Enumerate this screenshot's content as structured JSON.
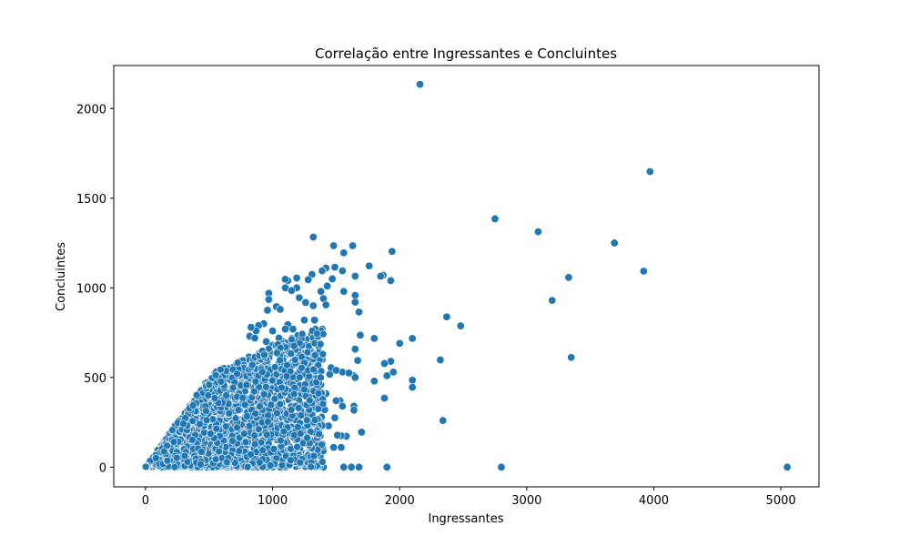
{
  "chart_data": {
    "type": "scatter",
    "title": "Correlação entre Ingressantes e Concluintes",
    "xlabel": "Ingressantes",
    "ylabel": "Concluintes",
    "xlim": [
      -250,
      5300
    ],
    "ylim": [
      -110,
      2240
    ],
    "xticks": [
      0,
      1000,
      2000,
      3000,
      4000,
      5000
    ],
    "yticks": [
      0,
      500,
      1000,
      1500,
      2000
    ],
    "grid": false,
    "marker_color": "#1f77b4",
    "marker_edge": "#ffffff",
    "dense_region": {
      "description": "thousands of points bounded by y <= x, concentrated at low values",
      "x_range": [
        0,
        1400
      ],
      "y_range": [
        0,
        800
      ]
    },
    "points": [
      [
        2160,
        2135
      ],
      [
        3970,
        1648
      ],
      [
        2750,
        1385
      ],
      [
        3090,
        1313
      ],
      [
        3690,
        1250
      ],
      [
        3920,
        1093
      ],
      [
        3330,
        1058
      ],
      [
        3200,
        930
      ],
      [
        3350,
        612
      ],
      [
        2370,
        838
      ],
      [
        2480,
        788
      ],
      [
        2320,
        598
      ],
      [
        2340,
        260
      ],
      [
        2800,
        0
      ],
      [
        5050,
        0
      ],
      [
        1900,
        0
      ],
      [
        2100,
        718
      ],
      [
        2000,
        690
      ],
      [
        1800,
        718
      ],
      [
        1690,
        736
      ],
      [
        1680,
        865
      ],
      [
        1650,
        958
      ],
      [
        1650,
        920
      ],
      [
        1650,
        1065
      ],
      [
        1630,
        1235
      ],
      [
        1760,
        1122
      ],
      [
        1870,
        1070
      ],
      [
        1850,
        1065
      ],
      [
        1930,
        1040
      ],
      [
        1940,
        1203
      ],
      [
        1560,
        1195
      ],
      [
        1550,
        1095
      ],
      [
        1480,
        1235
      ],
      [
        1320,
        1283
      ],
      [
        1420,
        1110
      ],
      [
        1490,
        1115
      ],
      [
        1470,
        1050
      ],
      [
        1390,
        1095
      ],
      [
        1310,
        1075
      ],
      [
        1280,
        1045
      ],
      [
        1190,
        1055
      ],
      [
        1190,
        1000
      ],
      [
        1120,
        1040
      ],
      [
        1100,
        1048
      ],
      [
        1100,
        1000
      ],
      [
        1150,
        985
      ],
      [
        1210,
        945
      ],
      [
        1260,
        918
      ],
      [
        1320,
        900
      ],
      [
        1400,
        940
      ],
      [
        1430,
        1010
      ],
      [
        1560,
        980
      ],
      [
        1380,
        980
      ],
      [
        1420,
        905
      ],
      [
        1650,
        658
      ],
      [
        1670,
        595
      ],
      [
        1640,
        510
      ],
      [
        1650,
        500
      ],
      [
        1550,
        530
      ],
      [
        1600,
        525
      ],
      [
        1450,
        518
      ],
      [
        1460,
        555
      ],
      [
        1500,
        540
      ],
      [
        1530,
        370
      ],
      [
        1500,
        370
      ],
      [
        1400,
        360
      ],
      [
        1550,
        340
      ],
      [
        1640,
        340
      ],
      [
        1640,
        318
      ],
      [
        1410,
        320
      ],
      [
        1700,
        195
      ],
      [
        1580,
        172
      ],
      [
        1540,
        175
      ],
      [
        1510,
        178
      ],
      [
        1490,
        275
      ],
      [
        1440,
        230
      ],
      [
        1380,
        255
      ],
      [
        1350,
        100
      ],
      [
        1540,
        110
      ],
      [
        1480,
        110
      ],
      [
        1400,
        0
      ],
      [
        1340,
        0
      ],
      [
        1310,
        0
      ],
      [
        1620,
        0
      ],
      [
        1680,
        0
      ],
      [
        1560,
        0
      ],
      [
        1800,
        480
      ],
      [
        1880,
        385
      ],
      [
        1900,
        510
      ],
      [
        1950,
        530
      ],
      [
        1930,
        590
      ],
      [
        1880,
        578
      ],
      [
        2100,
        485
      ],
      [
        2100,
        445
      ],
      [
        970,
        970
      ],
      [
        970,
        935
      ],
      [
        960,
        875
      ],
      [
        1030,
        895
      ],
      [
        1060,
        880
      ],
      [
        1120,
        795
      ],
      [
        1160,
        770
      ],
      [
        1250,
        820
      ],
      [
        1330,
        820
      ],
      [
        1390,
        770
      ],
      [
        1360,
        740
      ],
      [
        1340,
        725
      ],
      [
        1300,
        700
      ],
      [
        1200,
        690
      ],
      [
        1150,
        720
      ],
      [
        1100,
        770
      ],
      [
        1080,
        700
      ],
      [
        1050,
        720
      ],
      [
        1000,
        760
      ],
      [
        930,
        800
      ],
      [
        890,
        790
      ],
      [
        870,
        760
      ],
      [
        830,
        780
      ],
      [
        820,
        730
      ],
      [
        860,
        720
      ],
      [
        950,
        700
      ],
      [
        1000,
        680
      ],
      [
        1060,
        650
      ],
      [
        1100,
        640
      ],
      [
        1160,
        650
      ],
      [
        1200,
        600
      ],
      [
        1250,
        590
      ],
      [
        1300,
        560
      ],
      [
        1350,
        570
      ],
      [
        1330,
        480
      ],
      [
        1290,
        440
      ],
      [
        1250,
        430
      ],
      [
        1380,
        460
      ],
      [
        1420,
        410
      ],
      [
        1360,
        330
      ],
      [
        1300,
        300
      ],
      [
        1280,
        250
      ],
      [
        1220,
        230
      ],
      [
        1180,
        260
      ],
      [
        1160,
        200
      ],
      [
        1190,
        170
      ],
      [
        1260,
        150
      ],
      [
        1330,
        140
      ],
      [
        1300,
        60
      ],
      [
        1220,
        40
      ],
      [
        1180,
        20
      ],
      [
        1140,
        10
      ],
      [
        1100,
        0
      ],
      [
        1060,
        0
      ],
      [
        1000,
        0
      ],
      [
        960,
        0
      ],
      [
        920,
        0
      ],
      [
        880,
        0
      ],
      [
        840,
        0
      ],
      [
        800,
        0
      ],
      [
        760,
        0
      ],
      [
        720,
        0
      ],
      [
        680,
        0
      ],
      [
        640,
        0
      ],
      [
        600,
        0
      ],
      [
        560,
        0
      ],
      [
        520,
        0
      ],
      [
        480,
        0
      ],
      [
        440,
        0
      ],
      [
        400,
        0
      ],
      [
        360,
        0
      ],
      [
        320,
        0
      ],
      [
        280,
        0
      ],
      [
        240,
        0
      ],
      [
        200,
        0
      ],
      [
        160,
        0
      ],
      [
        120,
        0
      ],
      [
        80,
        0
      ],
      [
        40,
        0
      ],
      [
        10,
        0
      ]
    ]
  }
}
